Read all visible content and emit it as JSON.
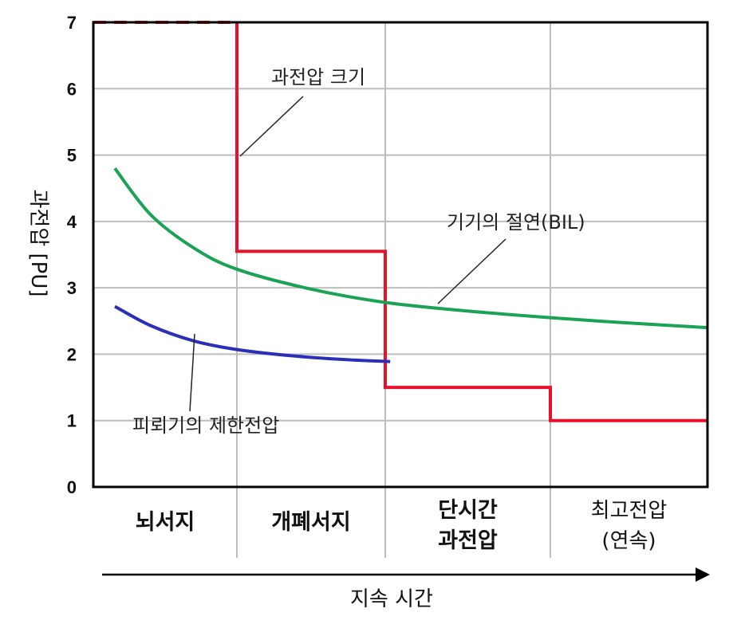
{
  "chart_data": {
    "type": "line",
    "ylabel": "과전압 [PU]",
    "xlabel": "지속 시간",
    "ylim": [
      0,
      7
    ],
    "yticks": [
      "0",
      "1",
      "2",
      "3",
      "4",
      "5",
      "6",
      "7"
    ],
    "categories": [
      {
        "lines": [
          "뇌서지"
        ],
        "bold": true
      },
      {
        "lines": [
          "개폐서지"
        ],
        "bold": true
      },
      {
        "lines": [
          "단시간",
          "과전압"
        ],
        "bold": true
      },
      {
        "lines": [
          "최고전압",
          "(연속)"
        ],
        "bold": false
      }
    ],
    "grid": true,
    "series": [
      {
        "name": "과전압 크기",
        "color": "#e8102a",
        "x": [
          0,
          1,
          1,
          2,
          2,
          3,
          3,
          4
        ],
        "y": [
          7,
          7,
          3.55,
          3.55,
          1.5,
          1.5,
          1.0,
          1.0
        ],
        "dashed_until_x": 1
      },
      {
        "name": "기기의 절연(BIL)",
        "color": "#1aa355",
        "x": [
          0.15,
          0.4,
          0.7,
          1.0,
          1.5,
          2.0,
          2.5,
          3.0,
          3.5,
          4.0
        ],
        "y": [
          4.8,
          4.1,
          3.6,
          3.28,
          2.98,
          2.78,
          2.65,
          2.55,
          2.47,
          2.4
        ]
      },
      {
        "name": "피뢰기의 제한전압",
        "color": "#2b2fb8",
        "x": [
          0.15,
          0.4,
          0.7,
          1.0,
          1.4,
          1.8,
          2.03
        ],
        "y": [
          2.72,
          2.43,
          2.2,
          2.07,
          1.97,
          1.91,
          1.89
        ]
      }
    ],
    "annotations": [
      {
        "text": "과전압 크기",
        "series": 0
      },
      {
        "text": "기기의 절연(BIL)",
        "series": 1
      },
      {
        "text": "피뢰기의 제한전압",
        "series": 2
      }
    ]
  }
}
